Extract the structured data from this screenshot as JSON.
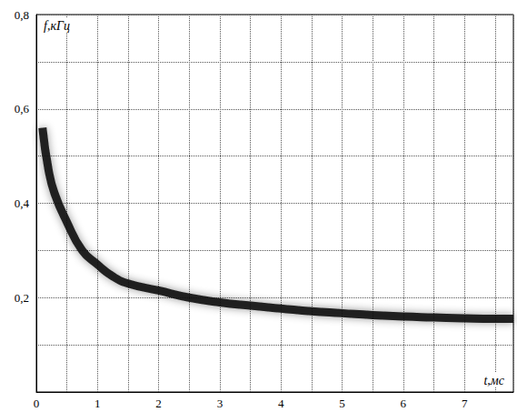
{
  "chart_data": {
    "type": "line",
    "x_label": "t,мс",
    "y_label": "f,кГц",
    "x": [
      0.1,
      0.2,
      0.3,
      0.5,
      0.75,
      1,
      1.25,
      1.5,
      2,
      2.5,
      3,
      3.5,
      4,
      4.5,
      5,
      5.5,
      6,
      6.5,
      7,
      7.5,
      7.8
    ],
    "values": [
      0.56,
      0.47,
      0.42,
      0.36,
      0.3,
      0.27,
      0.245,
      0.23,
      0.215,
      0.2,
      0.19,
      0.183,
      0.177,
      0.171,
      0.167,
      0.163,
      0.16,
      0.158,
      0.156,
      0.155,
      0.155
    ],
    "color": "#111111",
    "xlim": [
      0,
      7.8
    ],
    "ylim": [
      0,
      0.8
    ],
    "xticks": [
      0,
      1,
      2,
      3,
      4,
      5,
      6,
      7
    ],
    "yticks": [
      {
        "value": 0.2,
        "label": "0,2"
      },
      {
        "value": 0.4,
        "label": "0,4"
      },
      {
        "value": 0.6,
        "label": "0,6"
      },
      {
        "value": 0.8,
        "label": "0,8"
      }
    ],
    "grid": true
  }
}
